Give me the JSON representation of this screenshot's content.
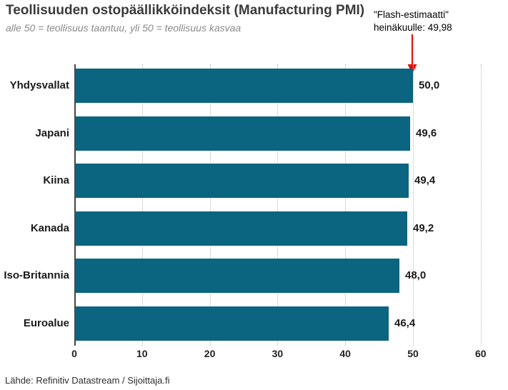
{
  "chart_data": {
    "type": "bar",
    "orientation": "horizontal",
    "title": "Teollisuuden ostopäällikköindeksit (Manufacturing PMI)",
    "subtitle": "alle 50 = teollisuus taantuu, yli 50 = teollisuus kasvaa",
    "categories": [
      "Yhdysvallat",
      "Japani",
      "Kiina",
      "Kanada",
      "Iso-Britannia",
      "Euroalue"
    ],
    "values": [
      50.0,
      49.6,
      49.4,
      49.2,
      48.0,
      46.4
    ],
    "value_labels": [
      "50,0",
      "49,6",
      "49,4",
      "49,2",
      "48,0",
      "46,4"
    ],
    "xlim": [
      0,
      60
    ],
    "x_ticks": [
      0,
      10,
      20,
      30,
      40,
      50,
      60
    ],
    "grid": "vertical-dotted",
    "legend": "none",
    "bar_color": "#0b6480",
    "annotation": {
      "line1": "\"Flash-estimaatti\"",
      "line2": "heinäkuulle: 49,98",
      "arrow_color": "#e8120c",
      "arrow_points_to_value": 50.0,
      "arrow_points_to_category": "Yhdysvallat"
    },
    "source": "Lähde: Refinitiv Datastream / Sijoittaja.fi"
  }
}
